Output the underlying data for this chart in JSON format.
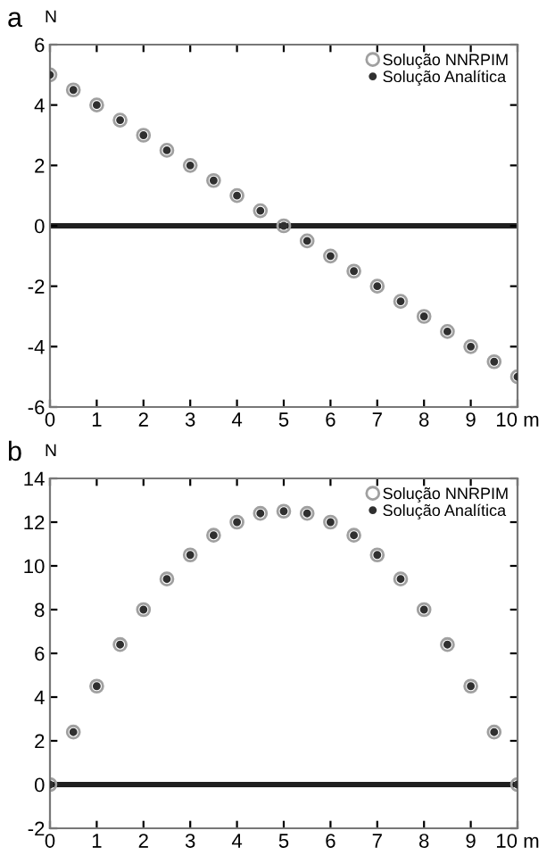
{
  "chart_data": [
    {
      "type": "scatter",
      "title": "a",
      "ylabel": "N",
      "x": [
        0,
        0.5,
        1,
        1.5,
        2,
        2.5,
        3,
        3.5,
        4,
        4.5,
        5,
        5.5,
        6,
        6.5,
        7,
        7.5,
        8,
        8.5,
        9,
        9.5,
        10
      ],
      "series": [
        {
          "name": "Solução NNRPIM",
          "color": "#a0a0a0",
          "marker": "circle",
          "values": [
            5,
            4.5,
            4,
            3.5,
            3,
            2.5,
            2,
            1.5,
            1,
            0.5,
            0,
            -0.5,
            -1,
            -1.5,
            -2,
            -2.5,
            -3,
            -3.5,
            -4,
            -4.5,
            -5
          ]
        },
        {
          "name": "Solução Analítica",
          "color": "#303030",
          "marker": "circle",
          "values": [
            5,
            4.5,
            4,
            3.5,
            3,
            2.5,
            2,
            1.5,
            1,
            0.5,
            0,
            -0.5,
            -1,
            -1.5,
            -2,
            -2.5,
            -3,
            -3.5,
            -4,
            -4.5,
            -5
          ]
        }
      ],
      "xlim": [
        0,
        10
      ],
      "xticks": [
        0,
        1,
        2,
        3,
        4,
        5,
        6,
        7,
        8,
        9,
        {
          "value": 10,
          "label": "10 m"
        }
      ],
      "ylim": [
        -6,
        6
      ],
      "yticks": [
        -6,
        -4,
        -2,
        0,
        2,
        4,
        6
      ],
      "ref_lines": [
        {
          "axis": "y",
          "value": 0,
          "color": "#202020"
        }
      ],
      "legend": "top right",
      "grid": false
    },
    {
      "type": "scatter",
      "title": "b",
      "ylabel": "N",
      "x": [
        0,
        0.5,
        1,
        1.5,
        2,
        2.5,
        3,
        3.5,
        4,
        4.5,
        5,
        5.5,
        6,
        6.5,
        7,
        7.5,
        8,
        8.5,
        9,
        9.5,
        10
      ],
      "series": [
        {
          "name": "Solução NNRPIM",
          "color": "#a0a0a0",
          "marker": "circle",
          "values": [
            0,
            2.4,
            4.5,
            6.4,
            8,
            9.4,
            10.5,
            11.4,
            12,
            12.4,
            12.5,
            12.4,
            12,
            11.4,
            10.5,
            9.4,
            8,
            6.4,
            4.5,
            2.4,
            0
          ]
        },
        {
          "name": "Solução Analítica",
          "color": "#303030",
          "marker": "circle",
          "values": [
            0,
            2.4,
            4.5,
            6.4,
            8,
            9.4,
            10.5,
            11.4,
            12,
            12.4,
            12.5,
            12.4,
            12,
            11.4,
            10.5,
            9.4,
            8,
            6.4,
            4.5,
            2.4,
            0
          ]
        }
      ],
      "xlim": [
        0,
        10
      ],
      "xticks": [
        0,
        1,
        2,
        3,
        4,
        5,
        6,
        7,
        8,
        9,
        {
          "value": 10,
          "label": "10 m"
        }
      ],
      "ylim": [
        -2,
        14
      ],
      "yticks": [
        -2,
        0,
        2,
        4,
        6,
        8,
        10,
        12,
        14
      ],
      "ref_lines": [
        {
          "axis": "y",
          "value": 0,
          "color": "#202020"
        }
      ],
      "legend": "top right",
      "grid": false
    }
  ]
}
